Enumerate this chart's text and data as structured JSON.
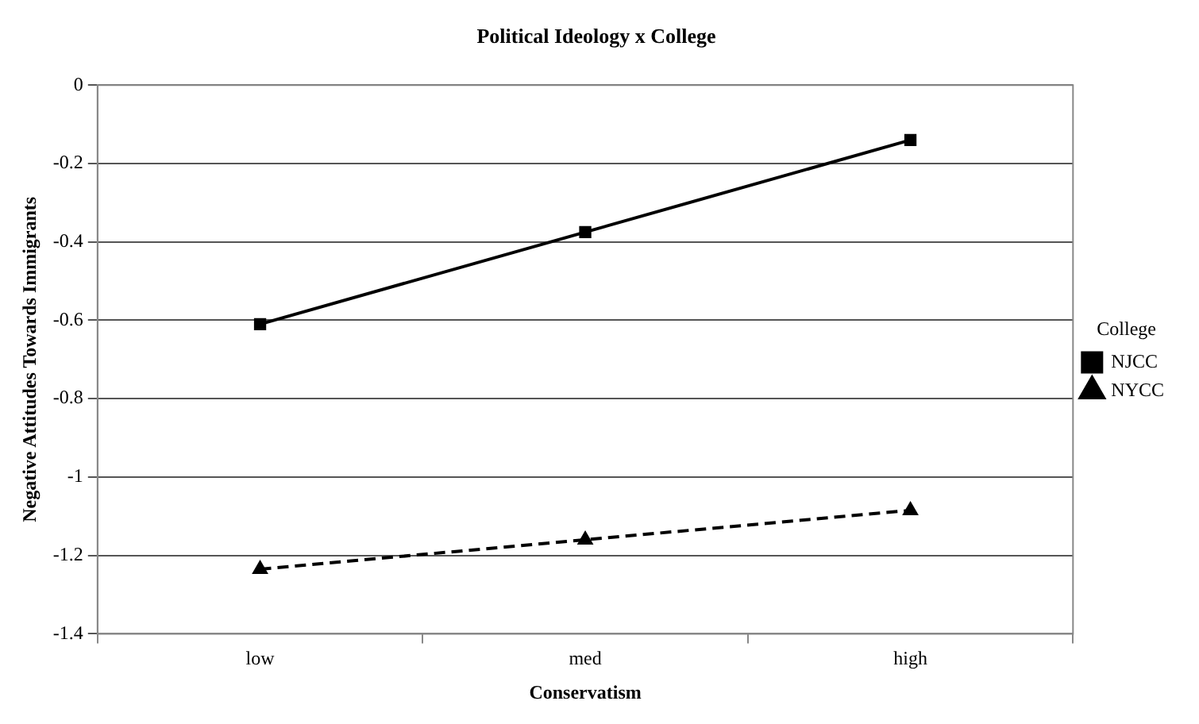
{
  "chart_data": {
    "type": "line",
    "title": "Political Ideology x College",
    "xlabel": "Conservatism",
    "ylabel": "Negative Attitudes Towards Immigrants",
    "legend_title": "College",
    "categories": [
      "low",
      "med",
      "high"
    ],
    "series": [
      {
        "name": "NJCC",
        "color": "#000000",
        "values": [
          -0.61,
          -0.375,
          -0.14
        ],
        "marker": "square",
        "line_style": "solid"
      },
      {
        "name": "NYCC",
        "color": "#000000",
        "values": [
          -1.235,
          -1.16,
          -1.085
        ],
        "marker": "triangle",
        "line_style": "dashed"
      }
    ],
    "ylim": [
      -1.4,
      0
    ],
    "yticks": [
      -1.4,
      -1.2,
      -1,
      -0.8,
      -0.6,
      -0.4,
      -0.2,
      0
    ],
    "grid": "y",
    "legend": "right"
  }
}
